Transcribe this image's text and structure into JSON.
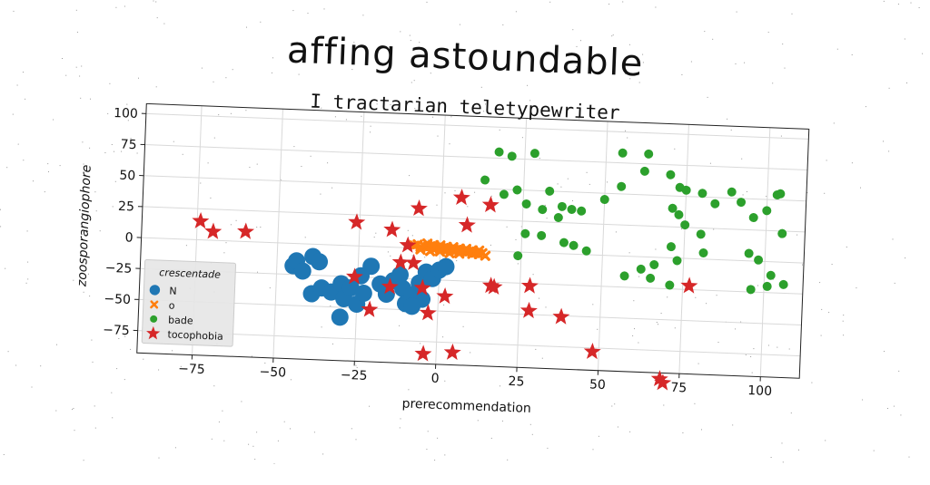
{
  "chart_data": {
    "type": "scatter",
    "title": "affing astoundable",
    "subtitle": "I tractarian teletypewriter",
    "xlabel": "prerecommendation",
    "ylabel": "zoosporangiophore",
    "xlim": [
      -92,
      112
    ],
    "ylim": [
      -93,
      108
    ],
    "xticks": [
      "−75",
      "−50",
      "−25",
      "0",
      "25",
      "50",
      "75",
      "100"
    ],
    "yticks": [
      "100",
      "75",
      "50",
      "25",
      "0",
      "−25",
      "−50",
      "−75"
    ],
    "grid": true,
    "legend": {
      "title": "crescentade",
      "placement": "lower-left"
    },
    "series": [
      {
        "name": "N",
        "marker": "circle-large",
        "color": "#1f77b4",
        "points": [
          [
            -45,
            -18
          ],
          [
            -44,
            -14
          ],
          [
            -42,
            -22
          ],
          [
            -39,
            -10
          ],
          [
            -37,
            -14
          ],
          [
            -39,
            -40
          ],
          [
            -36,
            -35
          ],
          [
            -33,
            -38
          ],
          [
            -30,
            -31
          ],
          [
            -29,
            -43
          ],
          [
            -27,
            -34
          ],
          [
            -25,
            -47
          ],
          [
            -23,
            -38
          ],
          [
            -24,
            -24
          ],
          [
            -21,
            -16
          ],
          [
            -18,
            -30
          ],
          [
            -16,
            -38
          ],
          [
            -14,
            -27
          ],
          [
            -12,
            -22
          ],
          [
            -11,
            -33
          ],
          [
            -10,
            -45
          ],
          [
            -8,
            -38
          ],
          [
            -6,
            -28
          ],
          [
            -4,
            -19
          ],
          [
            -2,
            -24
          ],
          [
            0,
            -17
          ],
          [
            2,
            -14
          ],
          [
            -5,
            -41
          ],
          [
            -8,
            -47
          ],
          [
            -30,
            -58
          ]
        ]
      },
      {
        "name": "o",
        "marker": "x",
        "color": "#ff7f0e",
        "points": [
          [
            -8,
            2
          ],
          [
            -6,
            1
          ],
          [
            -4,
            1
          ],
          [
            -2,
            0
          ],
          [
            0,
            0
          ],
          [
            2,
            -1
          ],
          [
            4,
            -1
          ],
          [
            6,
            -2
          ],
          [
            8,
            -2
          ],
          [
            10,
            -3
          ],
          [
            12,
            -3
          ],
          [
            14,
            -4
          ],
          [
            -7,
            3
          ],
          [
            -5,
            2
          ],
          [
            -3,
            2
          ],
          [
            -1,
            1
          ],
          [
            1,
            1
          ],
          [
            3,
            0
          ],
          [
            5,
            0
          ],
          [
            7,
            -1
          ],
          [
            9,
            -1
          ],
          [
            11,
            -2
          ],
          [
            13,
            -2
          ],
          [
            -4,
            4
          ],
          [
            -2,
            3
          ],
          [
            0,
            3
          ],
          [
            2,
            2
          ],
          [
            4,
            2
          ],
          [
            6,
            1
          ],
          [
            8,
            1
          ],
          [
            10,
            0
          ],
          [
            12,
            0
          ],
          [
            -6,
            -1
          ],
          [
            -3,
            -2
          ],
          [
            0,
            -2
          ],
          [
            3,
            -3
          ],
          [
            6,
            -3
          ]
        ]
      },
      {
        "name": "bade",
        "marker": "circle-small",
        "color": "#2ca02c",
        "points": [
          [
            17,
            80
          ],
          [
            21,
            77
          ],
          [
            28,
            80
          ],
          [
            13,
            57
          ],
          [
            19,
            46
          ],
          [
            23,
            50
          ],
          [
            26,
            39
          ],
          [
            31,
            35
          ],
          [
            37,
            38
          ],
          [
            40,
            36
          ],
          [
            33,
            50
          ],
          [
            36,
            29
          ],
          [
            43,
            35
          ],
          [
            26,
            15
          ],
          [
            31,
            14
          ],
          [
            41,
            7
          ],
          [
            45,
            3
          ],
          [
            24,
            -3
          ],
          [
            38,
            9
          ],
          [
            50,
            45
          ],
          [
            55,
            56
          ],
          [
            55,
            83
          ],
          [
            63,
            83
          ],
          [
            62,
            69
          ],
          [
            70,
            67
          ],
          [
            73,
            57
          ],
          [
            75,
            55
          ],
          [
            71,
            40
          ],
          [
            73,
            35
          ],
          [
            75,
            27
          ],
          [
            80,
            53
          ],
          [
            84,
            45
          ],
          [
            89,
            55
          ],
          [
            92,
            47
          ],
          [
            96,
            35
          ],
          [
            103,
            54
          ],
          [
            104,
            55
          ],
          [
            100,
            41
          ],
          [
            105,
            23
          ],
          [
            80,
            20
          ],
          [
            95,
            6
          ],
          [
            98,
            1
          ],
          [
            102,
            -11
          ],
          [
            96,
            -23
          ],
          [
            101,
            -20
          ],
          [
            106,
            -18
          ],
          [
            71,
            9
          ],
          [
            81,
            5
          ],
          [
            66,
            -6
          ],
          [
            65,
            -17
          ],
          [
            71,
            -22
          ],
          [
            73,
            -2
          ],
          [
            62,
            -10
          ],
          [
            57,
            -16
          ]
        ]
      },
      {
        "name": "tocophobia",
        "marker": "star",
        "color": "#d62728",
        "points": [
          [
            -74,
            15
          ],
          [
            -70,
            7
          ],
          [
            -60,
            8
          ],
          [
            -26,
            19
          ],
          [
            -26,
            -25
          ],
          [
            -15,
            14
          ],
          [
            -10,
            2
          ],
          [
            -12,
            -12
          ],
          [
            -15,
            -32
          ],
          [
            -21,
            -51
          ],
          [
            -8,
            -12
          ],
          [
            -7,
            32
          ],
          [
            -5,
            -32
          ],
          [
            -3,
            -52
          ],
          [
            2,
            -38
          ],
          [
            6,
            42
          ],
          [
            8,
            20
          ],
          [
            15,
            37
          ],
          [
            16,
            -28
          ],
          [
            17,
            -29
          ],
          [
            -4,
            -85
          ],
          [
            5,
            -83
          ],
          [
            28,
            -27
          ],
          [
            28,
            -47
          ],
          [
            38,
            -51
          ],
          [
            48,
            -78
          ],
          [
            69,
            -98
          ],
          [
            70,
            -101
          ],
          [
            77,
            -22
          ]
        ]
      }
    ]
  }
}
